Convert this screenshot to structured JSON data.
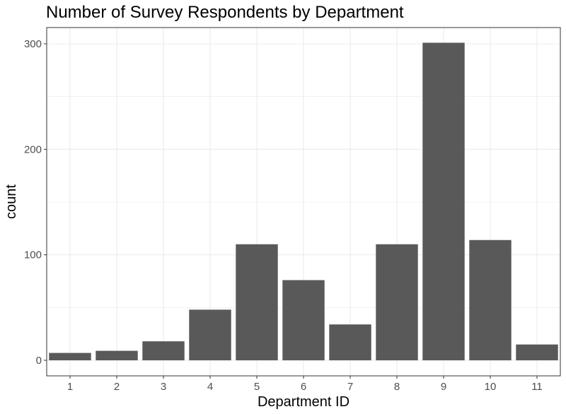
{
  "chart_data": {
    "type": "bar",
    "title": "Number of Survey Respondents by Department",
    "xlabel": "Department ID",
    "ylabel": "count",
    "categories": [
      "1",
      "2",
      "3",
      "4",
      "5",
      "6",
      "7",
      "8",
      "9",
      "10",
      "11"
    ],
    "values": [
      7,
      9,
      18,
      48,
      110,
      76,
      34,
      110,
      301,
      114,
      15
    ],
    "ylim": [
      0,
      315
    ],
    "yticks": [
      0,
      100,
      200,
      300
    ],
    "grid": true,
    "legend": "none",
    "bar_color": "#595959",
    "grid_color": "#ebebeb",
    "panel_border_color": "#333333"
  }
}
